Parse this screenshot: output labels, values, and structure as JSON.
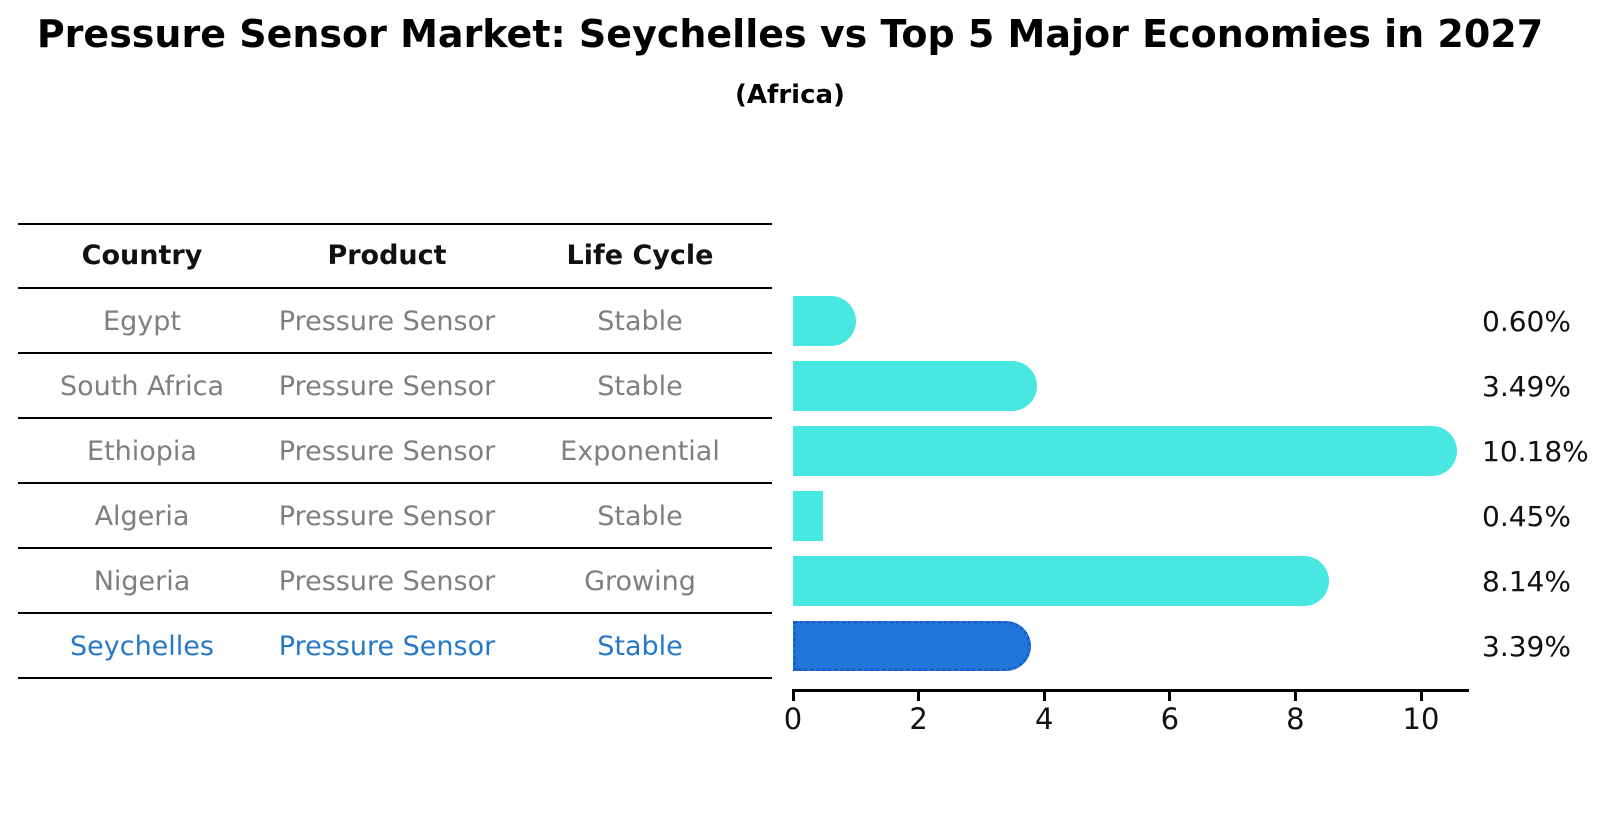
{
  "title": "Pressure Sensor Market: Seychelles vs Top 5 Major Economies in 2027",
  "subtitle": "(Africa)",
  "table": {
    "headers": [
      "Country",
      "Product",
      "Life Cycle"
    ],
    "rows": [
      {
        "country": "Egypt",
        "product": "Pressure Sensor",
        "life_cycle": "Stable",
        "value": 0.6,
        "value_label": "0.60%",
        "highlight": false
      },
      {
        "country": "South Africa",
        "product": "Pressure Sensor",
        "life_cycle": "Stable",
        "value": 3.49,
        "value_label": "3.49%",
        "highlight": false
      },
      {
        "country": "Ethiopia",
        "product": "Pressure Sensor",
        "life_cycle": "Exponential",
        "value": 10.18,
        "value_label": "10.18%",
        "highlight": false
      },
      {
        "country": "Algeria",
        "product": "Pressure Sensor",
        "life_cycle": "Stable",
        "value": 0.45,
        "value_label": "0.45%",
        "highlight": false
      },
      {
        "country": "Nigeria",
        "product": "Pressure Sensor",
        "life_cycle": "Growing",
        "value": 8.14,
        "value_label": "8.14%",
        "highlight": false
      },
      {
        "country": "Seychelles",
        "product": "Pressure Sensor",
        "life_cycle": "Stable",
        "value": 3.39,
        "value_label": "3.39%",
        "highlight": true
      }
    ]
  },
  "chart_data": {
    "type": "bar",
    "orientation": "horizontal",
    "title": "Pressure Sensor Market: Seychelles vs Top 5 Major Economies in 2027",
    "subtitle": "(Africa)",
    "categories": [
      "Egypt",
      "South Africa",
      "Ethiopia",
      "Algeria",
      "Nigeria",
      "Seychelles"
    ],
    "values": [
      0.6,
      3.49,
      10.18,
      0.45,
      8.14,
      3.39
    ],
    "value_labels": [
      "0.60%",
      "3.49%",
      "10.18%",
      "0.45%",
      "8.14%",
      "3.39%"
    ],
    "xlabel": "",
    "ylabel": "",
    "xlim": [
      0,
      10.77
    ],
    "xticks": [
      0,
      2,
      4,
      6,
      8,
      10
    ],
    "grid": false,
    "legend": false,
    "highlight_index": 5,
    "colors": {
      "bar": "#48e7e1",
      "highlight_bar": "#2176da",
      "highlight_bar_border": "#1a5fc9",
      "highlight_text": "#2878c8",
      "row_text": "#7f7f7f",
      "text": "#111111"
    }
  }
}
